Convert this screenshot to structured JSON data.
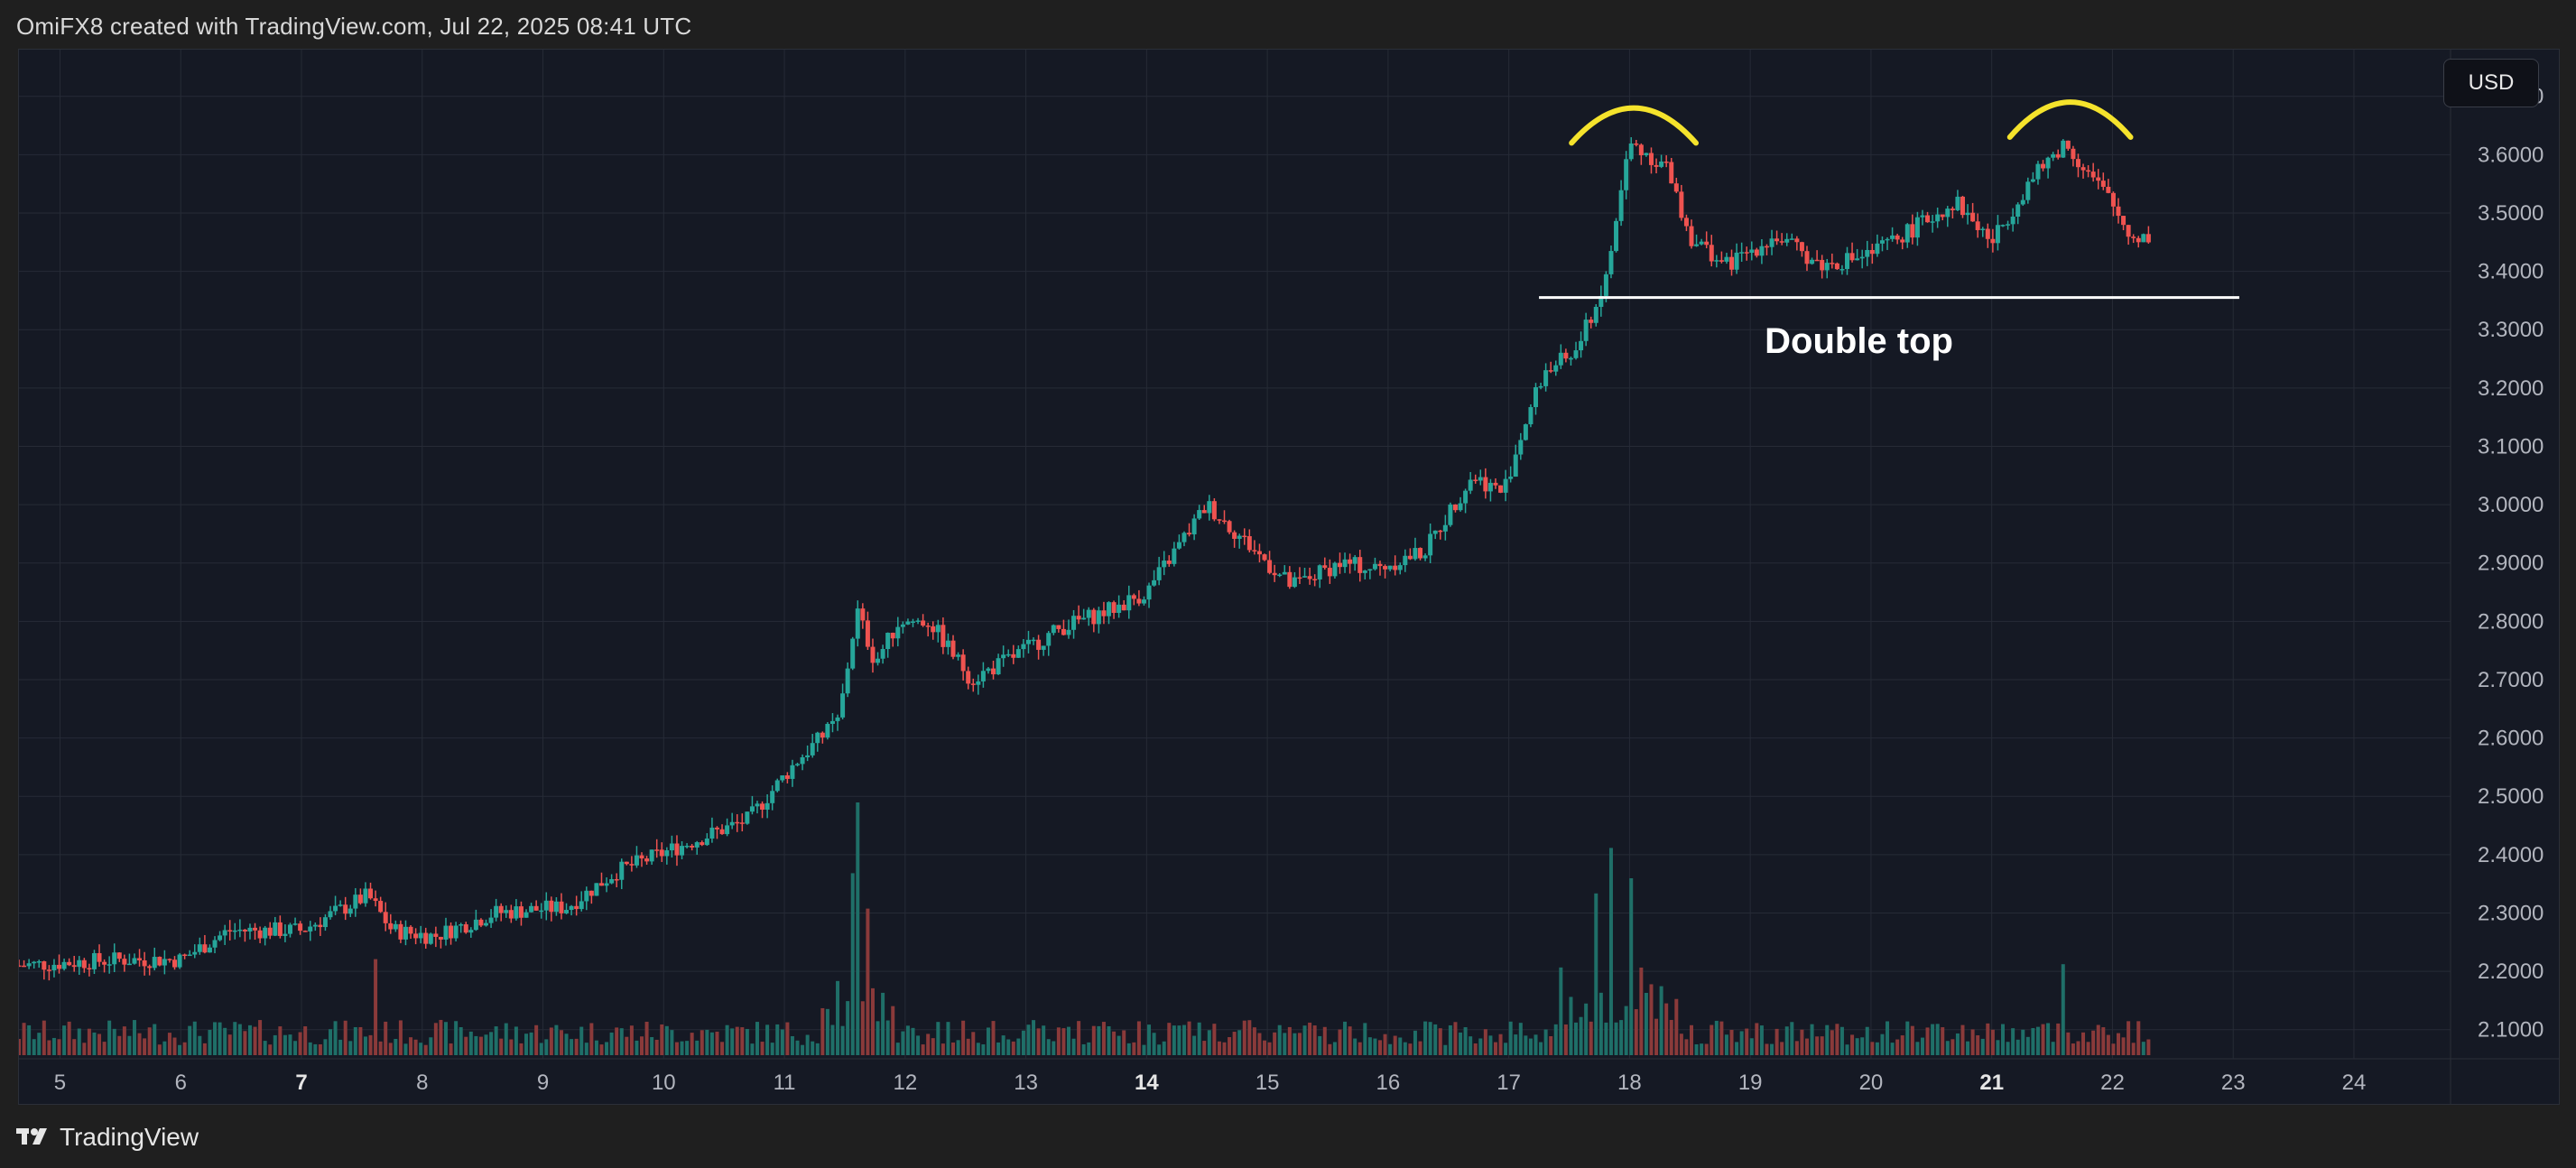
{
  "header": {
    "caption": "OmiFX8 created with TradingView.com, Jul 22, 2025 08:41 UTC"
  },
  "price_scale": {
    "currency": "USD"
  },
  "footer": {
    "brand": "TradingView"
  },
  "colors": {
    "up": "#26a69a",
    "down": "#ef5350",
    "volume_up": "#1f6f68",
    "volume_down": "#8a3a3a",
    "grid": "#262b36",
    "axis_text": "#b2b5be",
    "annotation_arc": "#f5e32c",
    "annotation_line": "#ffffff",
    "annotation_text": "#ffffff"
  },
  "chart_data": {
    "type": "candlestick",
    "title": "",
    "xlabel": "",
    "ylabel": "",
    "x_ticks": [
      {
        "label": "5",
        "x": 5,
        "bold": false
      },
      {
        "label": "6",
        "x": 6,
        "bold": false
      },
      {
        "label": "7",
        "x": 7,
        "bold": true
      },
      {
        "label": "8",
        "x": 8,
        "bold": false
      },
      {
        "label": "9",
        "x": 9,
        "bold": false
      },
      {
        "label": "10",
        "x": 10,
        "bold": false
      },
      {
        "label": "11",
        "x": 11,
        "bold": false
      },
      {
        "label": "12",
        "x": 12,
        "bold": false
      },
      {
        "label": "13",
        "x": 13,
        "bold": false
      },
      {
        "label": "14",
        "x": 14,
        "bold": true
      },
      {
        "label": "15",
        "x": 15,
        "bold": false
      },
      {
        "label": "16",
        "x": 16,
        "bold": false
      },
      {
        "label": "17",
        "x": 17,
        "bold": false
      },
      {
        "label": "18",
        "x": 18,
        "bold": false
      },
      {
        "label": "19",
        "x": 19,
        "bold": false
      },
      {
        "label": "20",
        "x": 20,
        "bold": false
      },
      {
        "label": "21",
        "x": 21,
        "bold": true
      },
      {
        "label": "22",
        "x": 22,
        "bold": false
      },
      {
        "label": "23",
        "x": 23,
        "bold": false
      },
      {
        "label": "24",
        "x": 24,
        "bold": false
      }
    ],
    "y_ticks": [
      "2.1000",
      "2.2000",
      "2.3000",
      "2.4000",
      "2.5000",
      "2.6000",
      "2.7000",
      "2.8000",
      "2.9000",
      "3.0000",
      "3.1000",
      "3.2000",
      "3.3000",
      "3.4000",
      "3.5000",
      "3.6000",
      "3.7000"
    ],
    "xlim": [
      4.66,
      24.8
    ],
    "ylim": [
      2.05,
      3.78
    ],
    "grid": true,
    "price_path": [
      [
        4.66,
        2.21
      ],
      [
        5.5,
        2.22
      ],
      [
        6.0,
        2.22
      ],
      [
        6.4,
        2.27
      ],
      [
        7.0,
        2.27
      ],
      [
        7.55,
        2.33
      ],
      [
        7.75,
        2.27
      ],
      [
        8.1,
        2.26
      ],
      [
        8.6,
        2.3
      ],
      [
        9.2,
        2.31
      ],
      [
        9.6,
        2.37
      ],
      [
        10.2,
        2.42
      ],
      [
        10.7,
        2.46
      ],
      [
        11.1,
        2.56
      ],
      [
        11.45,
        2.63
      ],
      [
        11.6,
        2.82
      ],
      [
        11.75,
        2.73
      ],
      [
        11.95,
        2.8
      ],
      [
        12.2,
        2.8
      ],
      [
        12.55,
        2.7
      ],
      [
        12.9,
        2.74
      ],
      [
        13.3,
        2.79
      ],
      [
        13.7,
        2.82
      ],
      [
        14.0,
        2.85
      ],
      [
        14.5,
        3.0
      ],
      [
        14.85,
        2.93
      ],
      [
        15.2,
        2.86
      ],
      [
        15.6,
        2.9
      ],
      [
        15.9,
        2.89
      ],
      [
        16.3,
        2.92
      ],
      [
        16.7,
        3.05
      ],
      [
        16.95,
        3.02
      ],
      [
        17.15,
        3.15
      ],
      [
        17.3,
        3.23
      ],
      [
        17.55,
        3.26
      ],
      [
        17.8,
        3.38
      ],
      [
        18.0,
        3.62
      ],
      [
        18.3,
        3.58
      ],
      [
        18.5,
        3.46
      ],
      [
        18.8,
        3.41
      ],
      [
        19.2,
        3.46
      ],
      [
        19.6,
        3.41
      ],
      [
        20.0,
        3.43
      ],
      [
        20.4,
        3.48
      ],
      [
        20.7,
        3.52
      ],
      [
        21.0,
        3.45
      ],
      [
        21.3,
        3.55
      ],
      [
        21.6,
        3.62
      ],
      [
        21.95,
        3.53
      ],
      [
        22.15,
        3.46
      ],
      [
        22.33,
        3.46
      ]
    ],
    "volume_spikes": [
      {
        "x": 7.6,
        "v": 0.38
      },
      {
        "x": 11.56,
        "v": 0.72
      },
      {
        "x": 11.62,
        "v": 1.0
      },
      {
        "x": 11.68,
        "v": 0.58
      },
      {
        "x": 17.72,
        "v": 0.64
      },
      {
        "x": 17.85,
        "v": 0.82
      },
      {
        "x": 18.0,
        "v": 0.7
      },
      {
        "x": 21.6,
        "v": 0.36
      }
    ],
    "annotations": {
      "label": "Double top",
      "neckline": {
        "x0": 17.25,
        "x1": 23.05,
        "y": 3.355
      },
      "tops": [
        {
          "x0": 17.52,
          "x1": 18.55,
          "y_base": 3.62,
          "y_peak": 3.68
        },
        {
          "x0": 21.15,
          "x1": 22.15,
          "y_base": 3.63,
          "y_peak": 3.69
        }
      ],
      "label_pos": {
        "x": 19.9,
        "y": 3.26
      }
    }
  }
}
